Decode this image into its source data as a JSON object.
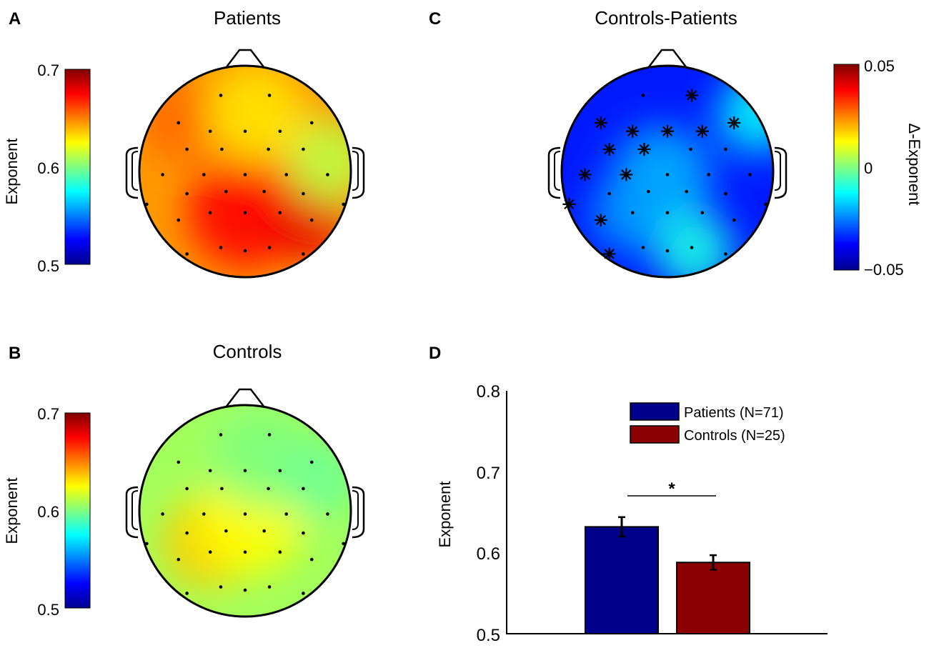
{
  "colormap": {
    "stops": [
      "#00008f",
      "#0000ff",
      "#00ffff",
      "#ffff00",
      "#ff8000",
      "#ff0000",
      "#800000"
    ],
    "head_outline": "#000000"
  },
  "electrode_count": 32,
  "significant_electrodes": [
    1,
    2,
    3,
    4,
    5,
    6,
    7,
    8,
    9,
    10,
    11,
    12,
    13
  ],
  "chart_data": [
    {
      "type": "heatmap",
      "panel": "A",
      "title": "Patients",
      "colorbar": {
        "label": "Exponent",
        "ticks": [
          "0.7",
          "0.6",
          "0.5"
        ],
        "range": [
          0.5,
          0.7
        ]
      },
      "base_value": 0.645,
      "hotspots": [
        {
          "name": "central-midline",
          "value": 0.675
        },
        {
          "name": "right-centroparietal",
          "value": 0.68
        },
        {
          "name": "left-frontal",
          "value": 0.655
        },
        {
          "name": "right-temporal",
          "value": 0.612
        },
        {
          "name": "frontal-midline",
          "value": 0.63
        }
      ]
    },
    {
      "type": "heatmap",
      "panel": "B",
      "title": "Controls",
      "colorbar": {
        "label": "Exponent",
        "ticks": [
          "0.7",
          "0.6",
          "0.5"
        ],
        "range": [
          0.5,
          0.7
        ]
      },
      "base_value": 0.607,
      "hotspots": [
        {
          "name": "left-parietal",
          "value": 0.635
        },
        {
          "name": "central",
          "value": 0.625
        },
        {
          "name": "frontal",
          "value": 0.6
        },
        {
          "name": "right-frontal",
          "value": 0.596
        }
      ]
    },
    {
      "type": "heatmap",
      "panel": "C",
      "title": "Controls-Patients",
      "colorbar": {
        "label": "Δ-Exponent",
        "ticks": [
          "0.05",
          "0",
          "−0.05"
        ],
        "range": [
          -0.05,
          0.05
        ]
      },
      "base_value": -0.035,
      "hotspots": [
        {
          "name": "right-frontal",
          "value": -0.012
        },
        {
          "name": "central",
          "value": -0.02
        },
        {
          "name": "right-occipital",
          "value": -0.01
        },
        {
          "name": "left-parietal",
          "value": -0.022
        }
      ]
    },
    {
      "type": "bar",
      "panel": "D",
      "ylabel": "Exponent",
      "ylim": [
        0.5,
        0.8
      ],
      "yticks": [
        "0.8",
        "0.7",
        "0.6",
        "0.5"
      ],
      "categories": [
        "Patients (N=71)",
        "Controls (N=25)"
      ],
      "values": [
        0.632,
        0.588
      ],
      "errors": [
        0.012,
        0.009
      ],
      "colors": [
        "#00008b",
        "#8b0000"
      ],
      "significance": "*"
    }
  ]
}
